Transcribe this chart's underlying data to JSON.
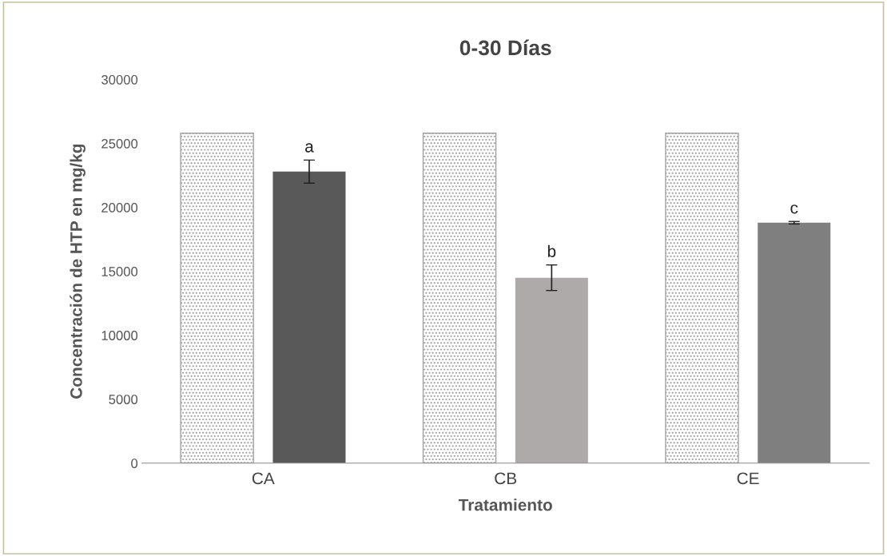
{
  "chart_data": {
    "type": "bar",
    "title": "0-30 Días",
    "xlabel": "Tratamiento",
    "ylabel": "Concentración de HTP en mg/kg",
    "categories": [
      "CA",
      "CB",
      "CE"
    ],
    "series": [
      {
        "colors": [
          "#a0a0a0",
          "#a0a0a0",
          "#a0a0a0"
        ],
        "values": [
          25800,
          25800,
          25800
        ]
      },
      {
        "colors": [
          "#595959",
          "#aeaaaa",
          "#7f7f7f"
        ],
        "values": [
          22800,
          14500,
          18800
        ],
        "errors": [
          900,
          1000,
          100
        ]
      }
    ],
    "ylim": [
      0,
      30000
    ],
    "yticks": [
      0,
      5000,
      10000,
      15000,
      20000,
      25000,
      30000
    ],
    "grid": false,
    "legend": false,
    "annotations": [
      "a",
      "b",
      "c"
    ]
  }
}
